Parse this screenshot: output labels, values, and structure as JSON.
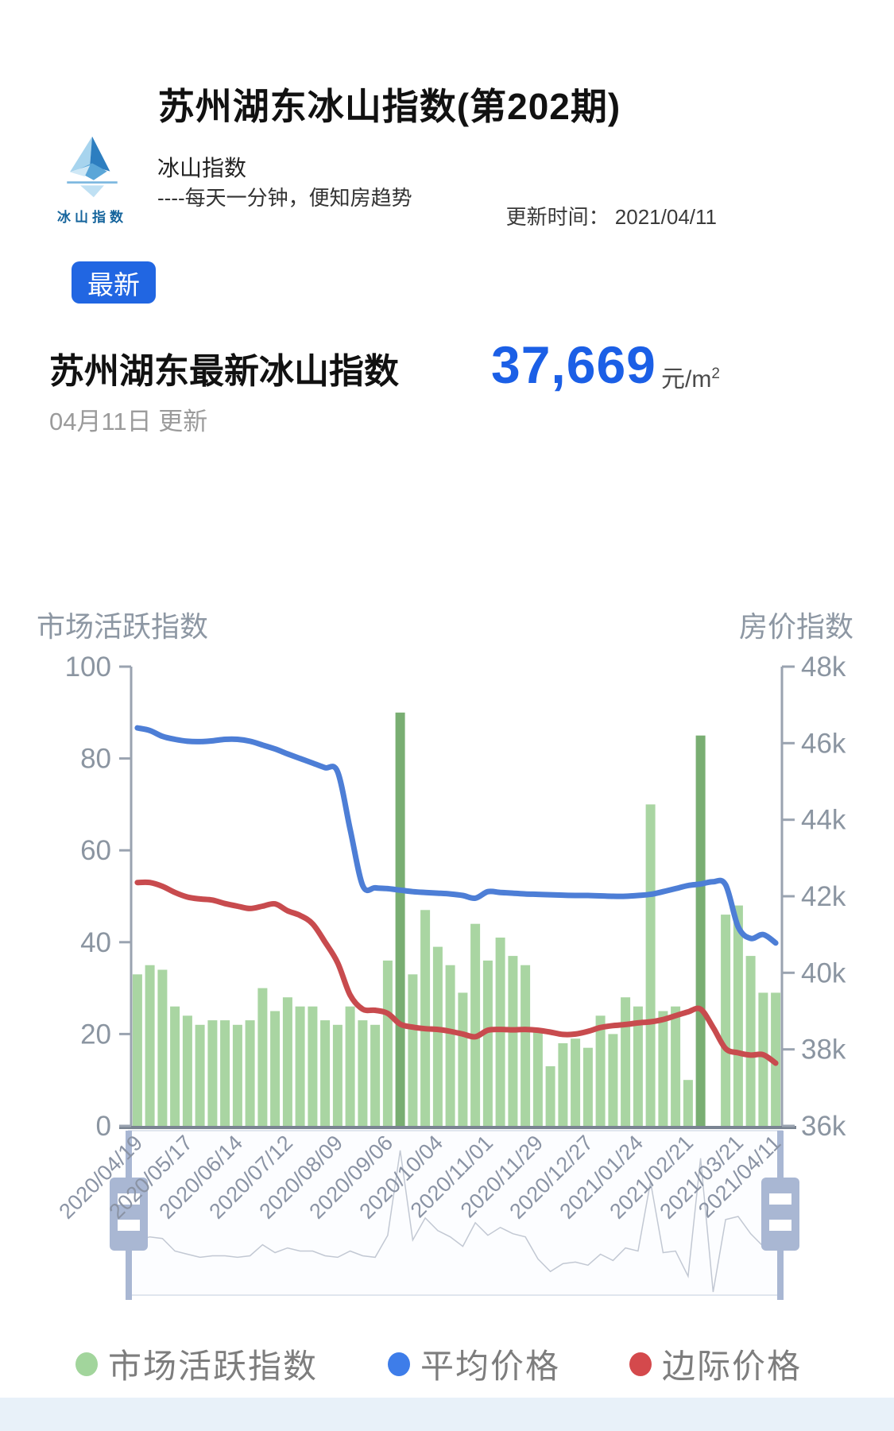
{
  "page": {
    "title": "苏州湖东冰山指数(第202期)",
    "brand": {
      "logo_caption": "冰山指数",
      "name": "冰山指数",
      "tagline": "----每天一分钟，便知房趋势"
    },
    "update_time": "更新时间： 2021/04/11",
    "badge": "最新",
    "index_heading": "苏州湖东最新冰山指数",
    "index_value": "37,669",
    "index_unit": "元/m",
    "index_unit_sup": "2",
    "date_note": "04月11日 更新"
  },
  "chart_data": {
    "type": "bar+line, dual y-axis, weekly data 2020/04/19 - 2021/04/11",
    "left_axis": {
      "title": "市场活跃指数",
      "tick_labels": [
        "100",
        "80",
        "60",
        "40",
        "20",
        "0"
      ],
      "range": [
        0,
        100
      ]
    },
    "right_axis": {
      "title": "房价指数",
      "tick_labels": [
        "48k",
        "46k",
        "44k",
        "42k",
        "40k",
        "38k",
        "36k"
      ],
      "range": [
        36000,
        48000
      ]
    },
    "x_labels": [
      {
        "week": 0,
        "label": "2020/04/19"
      },
      {
        "week": 4,
        "label": "2020/05/17"
      },
      {
        "week": 8,
        "label": "2020/06/14"
      },
      {
        "week": 12,
        "label": "2020/07/12"
      },
      {
        "week": 16,
        "label": "2020/08/09"
      },
      {
        "week": 20,
        "label": "2020/09/06"
      },
      {
        "week": 24,
        "label": "2020/10/04"
      },
      {
        "week": 28,
        "label": "2020/11/01"
      },
      {
        "week": 32,
        "label": "2020/11/29"
      },
      {
        "week": 36,
        "label": "2020/12/27"
      },
      {
        "week": 40,
        "label": "2021/01/24"
      },
      {
        "week": 44,
        "label": "2021/02/21"
      },
      {
        "week": 48,
        "label": "2021/03/21"
      },
      {
        "week": 51,
        "label": "2021/04/11"
      }
    ],
    "series": [
      {
        "name": "市场活跃指数",
        "type": "bar",
        "axis": "left",
        "values": [
          33,
          35,
          34,
          26,
          24,
          22,
          23,
          23,
          22,
          23,
          30,
          25,
          28,
          26,
          26,
          23,
          22,
          26,
          23,
          22,
          36,
          90,
          33,
          47,
          39,
          35,
          29,
          44,
          36,
          41,
          37,
          35,
          21,
          13,
          18,
          19,
          17,
          24,
          20,
          28,
          26,
          70,
          25,
          26,
          10,
          85,
          0,
          46,
          48,
          37,
          29,
          29
        ],
        "highlight_weeks": [
          21,
          45
        ]
      },
      {
        "name": "平均价格",
        "type": "line",
        "axis": "right",
        "values_k": [
          46.4,
          46.33,
          46.18,
          46.1,
          46.05,
          46.04,
          46.06,
          46.1,
          46.1,
          46.05,
          45.95,
          45.85,
          45.72,
          45.6,
          45.48,
          45.36,
          45.25,
          43.75,
          42.28,
          42.22,
          42.2,
          42.16,
          42.12,
          42.1,
          42.08,
          42.06,
          42.02,
          41.95,
          42.12,
          42.1,
          42.08,
          42.06,
          42.05,
          42.04,
          42.03,
          42.02,
          42.02,
          42.01,
          42.0,
          42.0,
          42.02,
          42.05,
          42.12,
          42.2,
          42.28,
          42.32,
          42.38,
          42.3,
          41.2,
          40.9,
          41.0,
          40.78
        ]
      },
      {
        "name": "边际价格",
        "type": "line",
        "axis": "right",
        "values_k": [
          42.36,
          42.36,
          42.26,
          42.1,
          41.98,
          41.93,
          41.9,
          41.81,
          41.74,
          41.68,
          41.74,
          41.8,
          41.62,
          41.5,
          41.28,
          40.8,
          40.26,
          39.42,
          39.05,
          39.02,
          38.94,
          38.66,
          38.58,
          38.54,
          38.52,
          38.47,
          38.4,
          38.33,
          38.5,
          38.52,
          38.51,
          38.52,
          38.5,
          38.45,
          38.39,
          38.4,
          38.47,
          38.57,
          38.62,
          38.65,
          38.69,
          38.72,
          38.78,
          38.88,
          38.98,
          39.05,
          38.57,
          38.02,
          37.91,
          37.85,
          37.86,
          37.64
        ]
      }
    ],
    "legend": [
      {
        "label": "市场活跃指数",
        "color": "#a2d59c"
      },
      {
        "label": "平均价格",
        "color": "#3e7de9"
      },
      {
        "label": "边际价格",
        "color": "#d4494c"
      }
    ]
  },
  "colors": {
    "accent_blue": "#2166e2",
    "value_blue": "#1b5fe6",
    "bar_light": "#a9d5a2",
    "bar_dark": "#79ae72",
    "line_blue": "#4d7ed6",
    "line_red": "#c84b4e",
    "axis_text": "#8b95a1",
    "axis_line": "#9aa3b0",
    "baseline": "#7a8492",
    "slider_accent": "#a9b7d3",
    "slider_fill": "#fcfdff",
    "slider_border": "#e0e6ee",
    "shadow_line": "#c2c8d3",
    "date_label": "#8a93a4",
    "bottom_band": "#e8f1f9"
  }
}
